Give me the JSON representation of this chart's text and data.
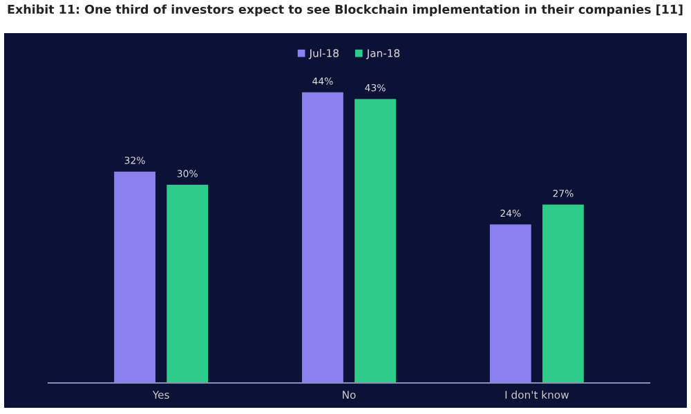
{
  "chart_data": {
    "type": "bar",
    "title": "Exhibit 11: One third of investors expect to see Blockchain implementation in their companies [11]",
    "categories": [
      "Yes",
      "No",
      "I don't know"
    ],
    "series": [
      {
        "name": "Jul-18",
        "color": "#8a80f0",
        "values": [
          32,
          44,
          24
        ],
        "value_labels": [
          "32%",
          "44%",
          "24%"
        ]
      },
      {
        "name": "Jan-18",
        "color": "#2ecb8b",
        "values": [
          30,
          43,
          27
        ],
        "value_labels": [
          "30%",
          "43%",
          "27%"
        ]
      }
    ],
    "legend": "top",
    "grid": false
  }
}
